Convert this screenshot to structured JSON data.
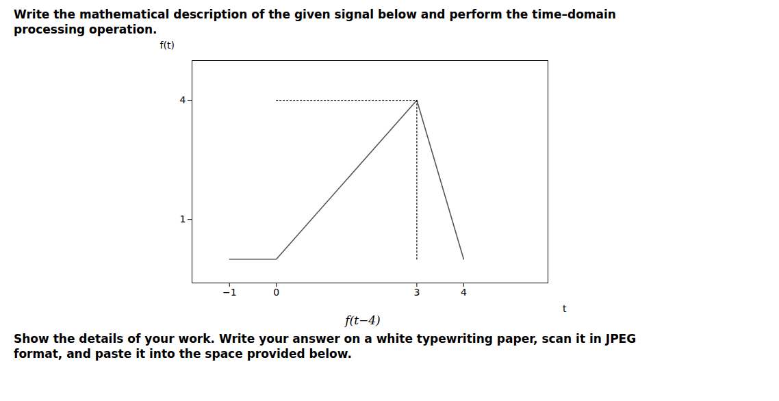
{
  "chart_data": {
    "type": "line",
    "title": "Write the mathematical description of the given signal below and perform the time–domain\nprocessing operation.",
    "subtitle": "f(t−4)",
    "caption": "Show the details of your work. Write your answer on a white typewriting paper, scan it in JPEG\nformat, and paste it into the space provided below.",
    "xlabel": "t",
    "ylabel": "f(t)",
    "series": [
      {
        "x": [
          -1,
          0,
          3,
          4
        ],
        "values": [
          0,
          0,
          4,
          0
        ],
        "color": "#555555",
        "line_style": "solid"
      },
      {
        "x": [
          0,
          3
        ],
        "values": [
          4,
          4
        ],
        "color": "#000000",
        "line_style": "dotted"
      },
      {
        "x": [
          3,
          3
        ],
        "values": [
          0,
          4
        ],
        "color": "#000000",
        "line_style": "dotted"
      }
    ],
    "xlim": [
      -1.8,
      5.8
    ],
    "ylim": [
      -0.6,
      5.0
    ],
    "xticks": [
      {
        "value": -1,
        "label": "−1"
      },
      0,
      3,
      4
    ],
    "yticks": [
      1,
      4
    ],
    "grid": false
  }
}
